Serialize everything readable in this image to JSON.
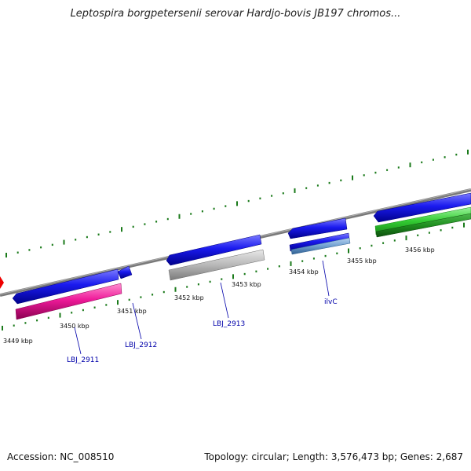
{
  "title": "Leptospira borgpetersenii serovar Hardjo-bovis JB197 chromos...",
  "footer": {
    "accession": "Accession: NC_008510",
    "info": "Topology: circular; Length: 3,576,473 bp; Genes: 2,687"
  },
  "colors": {
    "backbone": "#7a7a7a",
    "ticks": "#1a7a1a",
    "gene_blue": "#1a1aee",
    "gene_pink": "#ee1a99",
    "gene_gray": "#b8b8b8",
    "gene_green": "#33cc33",
    "gene_darkgreen": "#1f8f1f",
    "gene_lightblue": "#6f9fd0",
    "gene_red": "#ee0000",
    "label": "#0000aa"
  },
  "scale": {
    "unit": "kbp",
    "labels": [
      "3449 kbp",
      "3450 kbp",
      "3451 kbp",
      "3452 kbp",
      "3453 kbp",
      "3454 kbp",
      "3455 kbp",
      "3456 kbp"
    ]
  },
  "gene_labels": [
    "LBJ_2911",
    "LBJ_2912",
    "LBJ_2913",
    "ilvC"
  ]
}
